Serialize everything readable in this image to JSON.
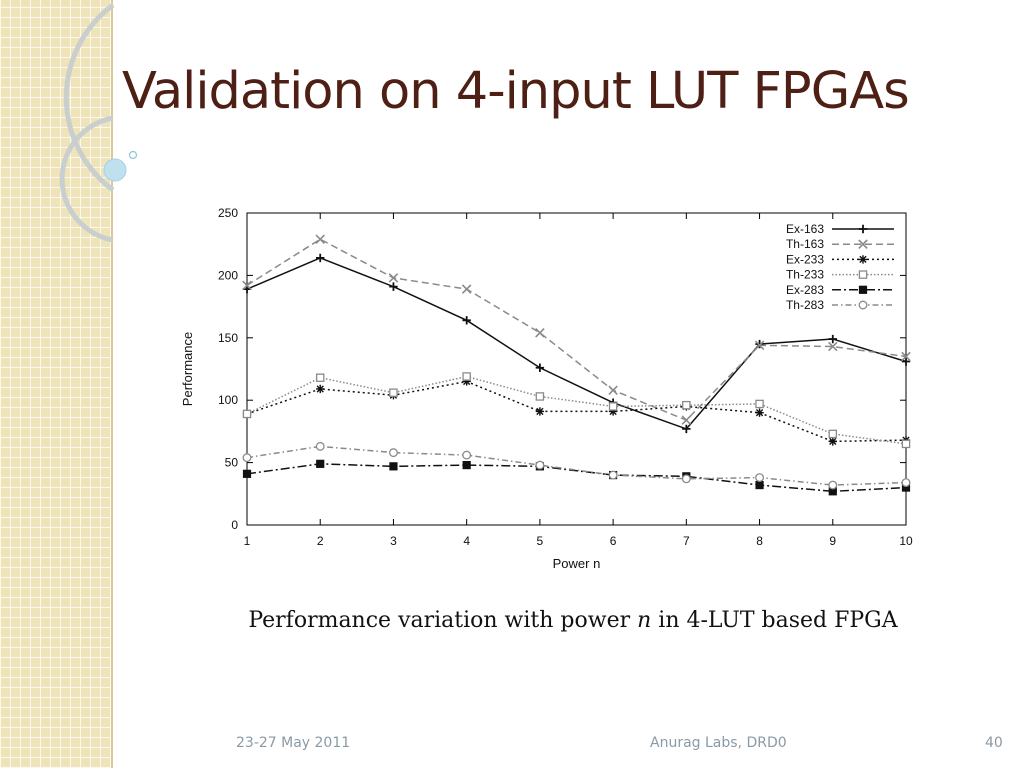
{
  "slide": {
    "title": "Validation on 4-input LUT FPGAs",
    "caption": {
      "before": "Performance variation with power ",
      "math": "n",
      "after": " in 4-LUT based FPGA"
    },
    "footer": {
      "date": "23-27 May 2011",
      "org": "Anurag Labs, DRD0",
      "page": "40"
    },
    "colors": {
      "title": "#4e1f14",
      "strip": "#efe3b9",
      "footer": "#8a9aa6"
    }
  },
  "chart_data": {
    "type": "line",
    "xlabel": "Power n",
    "ylabel": "Performance",
    "x": [
      1,
      2,
      3,
      4,
      5,
      6,
      7,
      8,
      9,
      10
    ],
    "xlim": [
      1,
      10
    ],
    "ylim": [
      0,
      250
    ],
    "yticks": [
      0,
      50,
      100,
      150,
      200,
      250
    ],
    "grid": false,
    "legend_position": "top-right",
    "series": [
      {
        "name": "Ex-163",
        "values": [
          189,
          214,
          191,
          164,
          126,
          98,
          77,
          145,
          149,
          131
        ],
        "color": "#111111",
        "dash": "",
        "marker": "plus"
      },
      {
        "name": "Th-163",
        "values": [
          192,
          229,
          198,
          189,
          154,
          108,
          84,
          144,
          143,
          135
        ],
        "color": "#8a8a8a",
        "dash": "7,4",
        "marker": "cross"
      },
      {
        "name": "Ex-233",
        "values": [
          89,
          109,
          104,
          115,
          91,
          91,
          95,
          90,
          67,
          68
        ],
        "color": "#111111",
        "dash": "2,3",
        "marker": "star"
      },
      {
        "name": "Th-233",
        "values": [
          89,
          118,
          106,
          119,
          103,
          95,
          96,
          97,
          73,
          65
        ],
        "color": "#8a8a8a",
        "dash": "1.5,2",
        "marker": "square-open"
      },
      {
        "name": "Ex-283",
        "values": [
          41,
          49,
          47,
          48,
          47,
          40,
          39,
          32,
          27,
          30
        ],
        "color": "#111111",
        "dash": "9,3,2,3",
        "marker": "square-filled"
      },
      {
        "name": "Th-283",
        "values": [
          54,
          63,
          58,
          56,
          48,
          40,
          37,
          38,
          32,
          34
        ],
        "color": "#8a8a8a",
        "dash": "6,3,1.5,3",
        "marker": "circle-open"
      }
    ]
  }
}
